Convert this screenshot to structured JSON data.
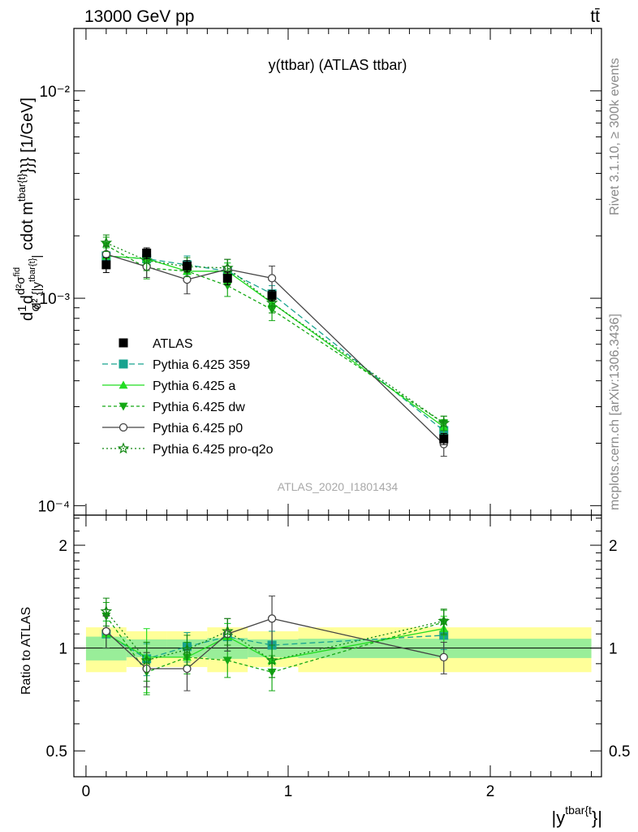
{
  "header": {
    "left": "13000 GeV pp",
    "right": "tt̄"
  },
  "side_labels": {
    "rivet": "Rivet 3.1.10, ≥ 300k events",
    "mcplots": "mcplots.cern.ch [arXiv:1306.3436]"
  },
  "chart_data": [
    {
      "type": "line",
      "title": "y(ttbar) (ATLAS ttbar)",
      "watermark": "ATLAS_2020_I1801434",
      "ylabel": "d1/σd²σ^fid / d² {|y^tbar{t}|} cdot m^tbar{t}}}} [1/GeV]",
      "ylabel_parts": {
        "a": "d",
        "frac1_num": "1",
        "frac1_den": "σ",
        "b": "d",
        "num": "d²σ",
        "num_sup": "fid",
        "den": "d² {|y",
        "den_sup": "tbar{t}",
        "den_tail": "|",
        "tail": " cdot m",
        "tail_sup": "tbar{t}",
        "tail_end": "}}} [1/GeV]"
      },
      "yscale": "log",
      "ylim": [
        9e-05,
        0.02
      ],
      "xlim": [
        -0.06,
        2.55
      ],
      "yticks": [
        {
          "value": 0.01,
          "label": "10⁻²"
        },
        {
          "value": 0.001,
          "label": "10⁻³"
        },
        {
          "value": 0.0001,
          "label": "10⁻⁴"
        }
      ],
      "legend_position": "lower-left",
      "x": [
        0.1,
        0.3,
        0.5,
        0.7,
        0.92,
        1.77
      ],
      "bin_edges": [
        0.0,
        0.2,
        0.4,
        0.6,
        0.8,
        1.05,
        2.5
      ],
      "series": [
        {
          "name": "ATLAS",
          "color": "#000000",
          "marker": "square",
          "dash": "none",
          "values": [
            0.00145,
            0.00165,
            0.00143,
            0.00125,
            0.00103,
            0.00021
          ],
          "err": [
            0.00012,
            0.0001,
            9e-05,
            9e-05,
            6e-05,
            1.3e-05
          ]
        },
        {
          "name": "Pythia 6.425 359",
          "color": "#18a38f",
          "marker": "square",
          "dash": "7,4",
          "values": [
            0.0016,
            0.00155,
            0.00145,
            0.00135,
            0.00105,
            0.00023
          ],
          "err": [
            0.00015,
            0.00016,
            0.00015,
            0.00013,
            0.0001,
            2e-05
          ]
        },
        {
          "name": "Pythia 6.425 a",
          "color": "#22dd22",
          "marker": "triangle-up",
          "dash": "none",
          "values": [
            0.0016,
            0.00155,
            0.00135,
            0.00135,
            0.00095,
            0.00024
          ],
          "err": [
            0.00015,
            0.00016,
            0.00014,
            0.00013,
            0.0001,
            2e-05
          ]
        },
        {
          "name": "Pythia 6.425 dw",
          "color": "#15a815",
          "marker": "triangle-down",
          "dash": "4,3",
          "values": [
            0.0018,
            0.0014,
            0.00135,
            0.00115,
            0.00088,
            0.00025
          ],
          "err": [
            0.00017,
            0.00016,
            0.00014,
            0.00013,
            0.0001,
            2e-05
          ]
        },
        {
          "name": "Pythia 6.425 p0",
          "color": "#444444",
          "marker": "circle-open",
          "dash": "none",
          "values": [
            0.00163,
            0.00142,
            0.00123,
            0.00138,
            0.00125,
            0.000198
          ],
          "err": [
            0.00015,
            0.00016,
            0.00018,
            0.00016,
            0.00018,
            2.5e-05
          ]
        },
        {
          "name": "Pythia 6.425 pro-q2o",
          "color": "#118811",
          "marker": "star",
          "dash": "2,3",
          "values": [
            0.00185,
            0.00152,
            0.00142,
            0.0014,
            0.00095,
            0.00025
          ],
          "err": [
            0.00017,
            0.00016,
            0.00015,
            0.00014,
            0.0001,
            2e-05
          ]
        }
      ]
    },
    {
      "type": "line",
      "ylabel": "Ratio to ATLAS",
      "xlabel": "|y^tbar{t}}|",
      "xlabel_parts": {
        "main": "|y",
        "sup": "tbar{t",
        "tail": "}|"
      },
      "yscale": "log",
      "ylim": [
        0.42,
        2.45
      ],
      "xlim": [
        -0.06,
        2.55
      ],
      "yticks": [
        {
          "value": 2,
          "label": "2"
        },
        {
          "value": 1,
          "label": "1"
        },
        {
          "value": 0.5,
          "label": "0.5"
        }
      ],
      "xticks": [
        {
          "value": 0,
          "label": "0"
        },
        {
          "value": 1,
          "label": "1"
        },
        {
          "value": 2,
          "label": "2"
        }
      ],
      "bands": {
        "bin_edges": [
          0.0,
          0.2,
          0.4,
          0.6,
          0.8,
          1.05,
          2.5
        ],
        "inner": [
          0.08,
          0.06,
          0.06,
          0.07,
          0.06,
          0.065
        ],
        "outer": [
          0.15,
          0.12,
          0.12,
          0.15,
          0.12,
          0.15
        ],
        "inner_color": "#99ee99",
        "outer_color": "#ffff99"
      },
      "x": [
        0.1,
        0.3,
        0.5,
        0.7,
        0.92,
        1.77
      ],
      "series": [
        {
          "name": "Pythia 6.425 359",
          "color": "#18a38f",
          "marker": "square",
          "dash": "7,4",
          "values": [
            1.1,
            0.93,
            1.01,
            1.08,
            1.02,
            1.09
          ],
          "err": [
            0.1,
            0.1,
            0.1,
            0.1,
            0.1,
            0.1
          ]
        },
        {
          "name": "Pythia 6.425 a",
          "color": "#22dd22",
          "marker": "triangle-up",
          "dash": "none",
          "values": [
            1.1,
            0.94,
            0.94,
            1.08,
            0.92,
            1.14
          ],
          "err": [
            0.1,
            0.2,
            0.1,
            0.1,
            0.1,
            0.1
          ]
        },
        {
          "name": "Pythia 6.425 dw",
          "color": "#15a815",
          "marker": "triangle-down",
          "dash": "4,3",
          "values": [
            1.24,
            0.85,
            0.94,
            0.92,
            0.85,
            1.19
          ],
          "err": [
            0.12,
            0.12,
            0.1,
            0.1,
            0.1,
            0.1
          ]
        },
        {
          "name": "Pythia 6.425 p0",
          "color": "#444444",
          "marker": "circle-open",
          "dash": "none",
          "values": [
            1.12,
            0.87,
            0.87,
            1.1,
            1.22,
            0.94
          ],
          "err": [
            0.12,
            0.1,
            0.12,
            0.12,
            0.2,
            0.1
          ]
        },
        {
          "name": "Pythia 6.425 pro-q2o",
          "color": "#118811",
          "marker": "star",
          "dash": "2,3",
          "values": [
            1.28,
            0.92,
            0.99,
            1.12,
            0.92,
            1.2
          ],
          "err": [
            0.12,
            0.12,
            0.1,
            0.1,
            0.1,
            0.1
          ]
        }
      ]
    }
  ]
}
